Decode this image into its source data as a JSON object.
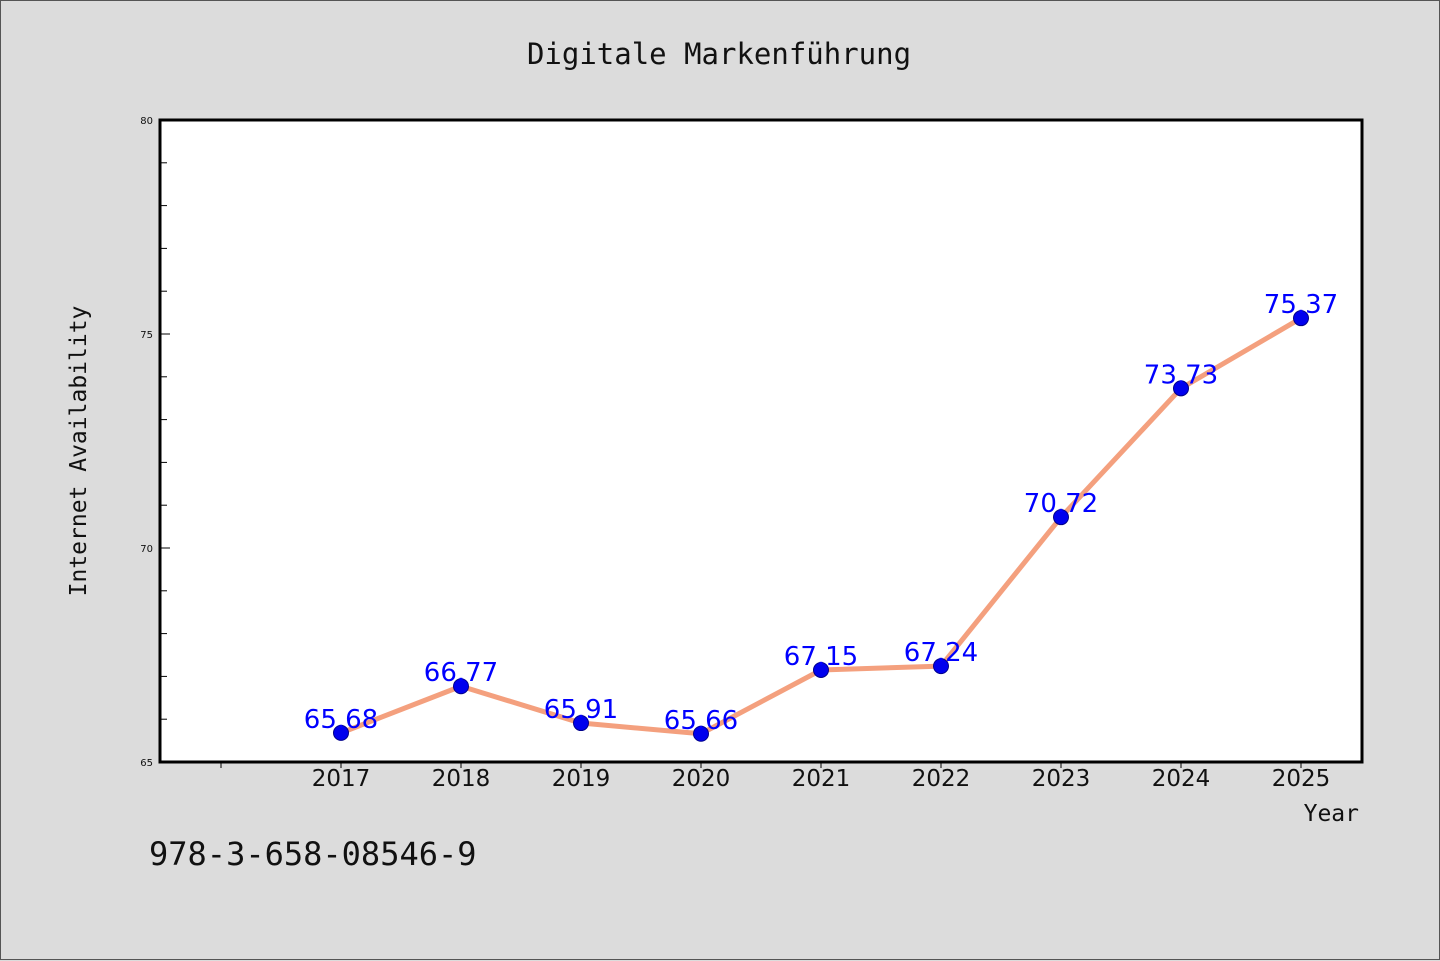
{
  "chart_data": {
    "type": "line",
    "title": "Digitale Markenführung",
    "xlabel": "Year",
    "ylabel": "Internet Availability",
    "x": [
      "2017",
      "2018",
      "2019",
      "2020",
      "2021",
      "2022",
      "2023",
      "2024",
      "2025"
    ],
    "values": [
      65.68,
      66.77,
      65.91,
      65.66,
      67.15,
      67.24,
      70.72,
      73.73,
      75.37
    ],
    "data_labels": [
      "65.68",
      "66.77",
      "65.91",
      "65.66",
      "67.15",
      "67.24",
      "70.72",
      "73.73",
      "75.37"
    ],
    "ylim": [
      65,
      80
    ],
    "y_ticks": [
      "65",
      "70",
      "75",
      "80"
    ],
    "grid": false,
    "legend": "none",
    "colors": {
      "line": "#f4a07e",
      "marker": "#0000ee",
      "label": "#0000ff",
      "background": "#dcdcdc",
      "plot_background": "#ffffff"
    }
  },
  "footer": {
    "isbn": "978-3-658-08546-9"
  }
}
